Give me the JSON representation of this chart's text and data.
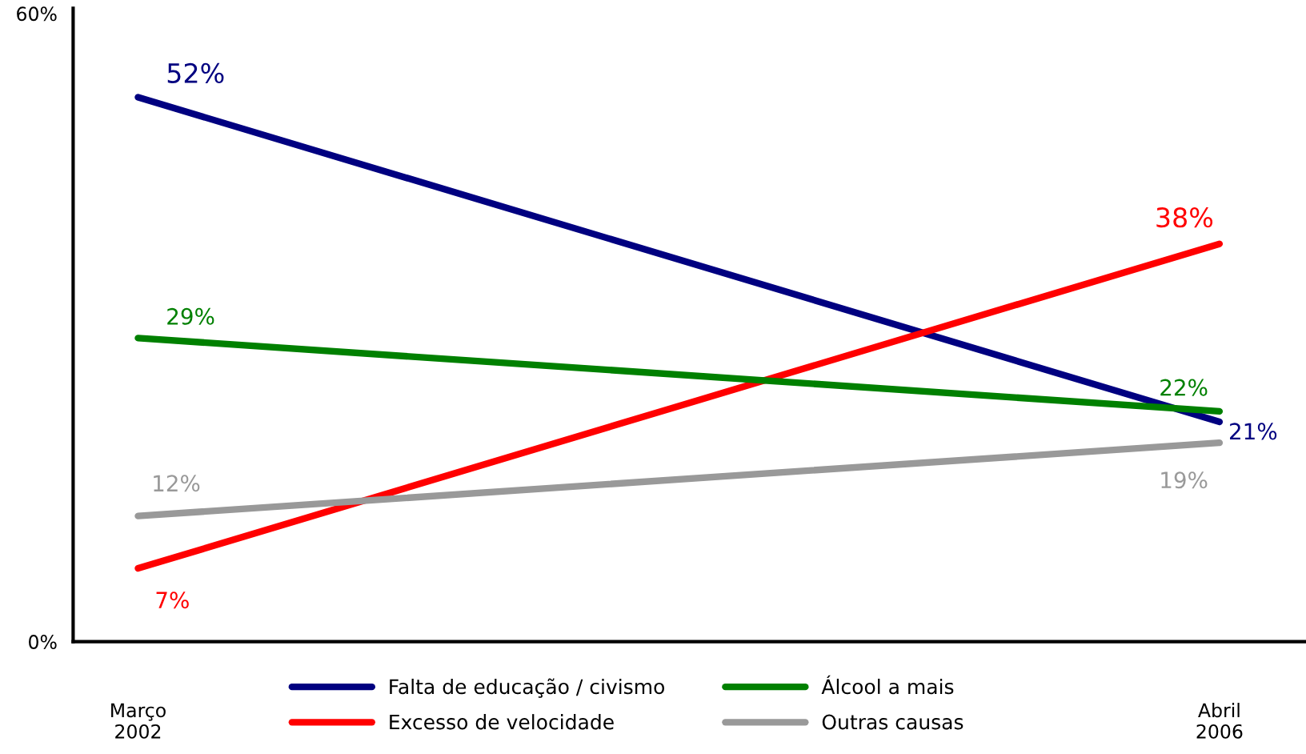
{
  "chart_data": {
    "type": "line",
    "categories": [
      "Março\n2002",
      "Abril\n2006"
    ],
    "ylim": [
      0,
      60.5
    ],
    "yticks": [
      {
        "value": 0,
        "label": "0%"
      },
      {
        "value": 60,
        "label": "60%"
      }
    ],
    "series": [
      {
        "name": "Falta de educação / civismo",
        "color": "#000080",
        "values": [
          52,
          21
        ],
        "value_labels": [
          "52%",
          "21%"
        ]
      },
      {
        "name": "Excesso de velocidade",
        "color": "#ff0000",
        "values": [
          7,
          38
        ],
        "value_labels": [
          "7%",
          "38%"
        ]
      },
      {
        "name": "Álcool a mais",
        "color": "#008000",
        "values": [
          29,
          22
        ],
        "value_labels": [
          "29%",
          "22%"
        ]
      },
      {
        "name": "Outras causas",
        "color": "#999999",
        "values": [
          12,
          19
        ],
        "value_labels": [
          "12%",
          "19%"
        ]
      }
    ],
    "ref_lines": [
      {
        "axis": "y",
        "value": 0,
        "color": "#000000",
        "line_style": "solid"
      }
    ],
    "legend": "bottom",
    "grid": false,
    "marker": "none",
    "line_style": "solid"
  }
}
